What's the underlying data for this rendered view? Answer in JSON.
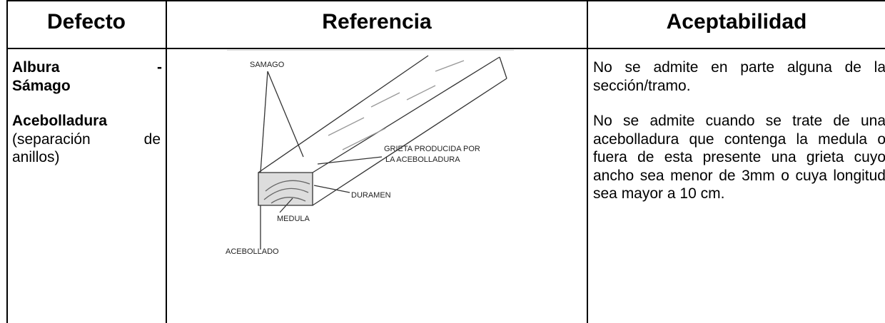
{
  "table": {
    "header": [
      "Defecto",
      "Referencia",
      "Aceptabilidad"
    ],
    "rows": [
      {
        "defecto": [
          "Albura",
          "-",
          "Sámago"
        ],
        "aceptabilidad": "No se admite en parte alguna de la sección/tramo."
      },
      {
        "defecto": [
          "Acebolladura",
          "(separación de anillos)"
        ],
        "aceptabilidad": "No se admite cuando se trate de una acebolladura que contenga la medula o fuera de esta presente una grieta cuyo ancho sea menor de 3mm o cuya longitud sea mayor a 10 cm."
      }
    ]
  },
  "figure": {
    "labels": [
      "SAMAGO",
      "GRIETA PRODUCIDA POR",
      "LA ACEBOLLADURA",
      "DURAMEN",
      "MEDULA",
      "ACEBOLLADO"
    ]
  }
}
